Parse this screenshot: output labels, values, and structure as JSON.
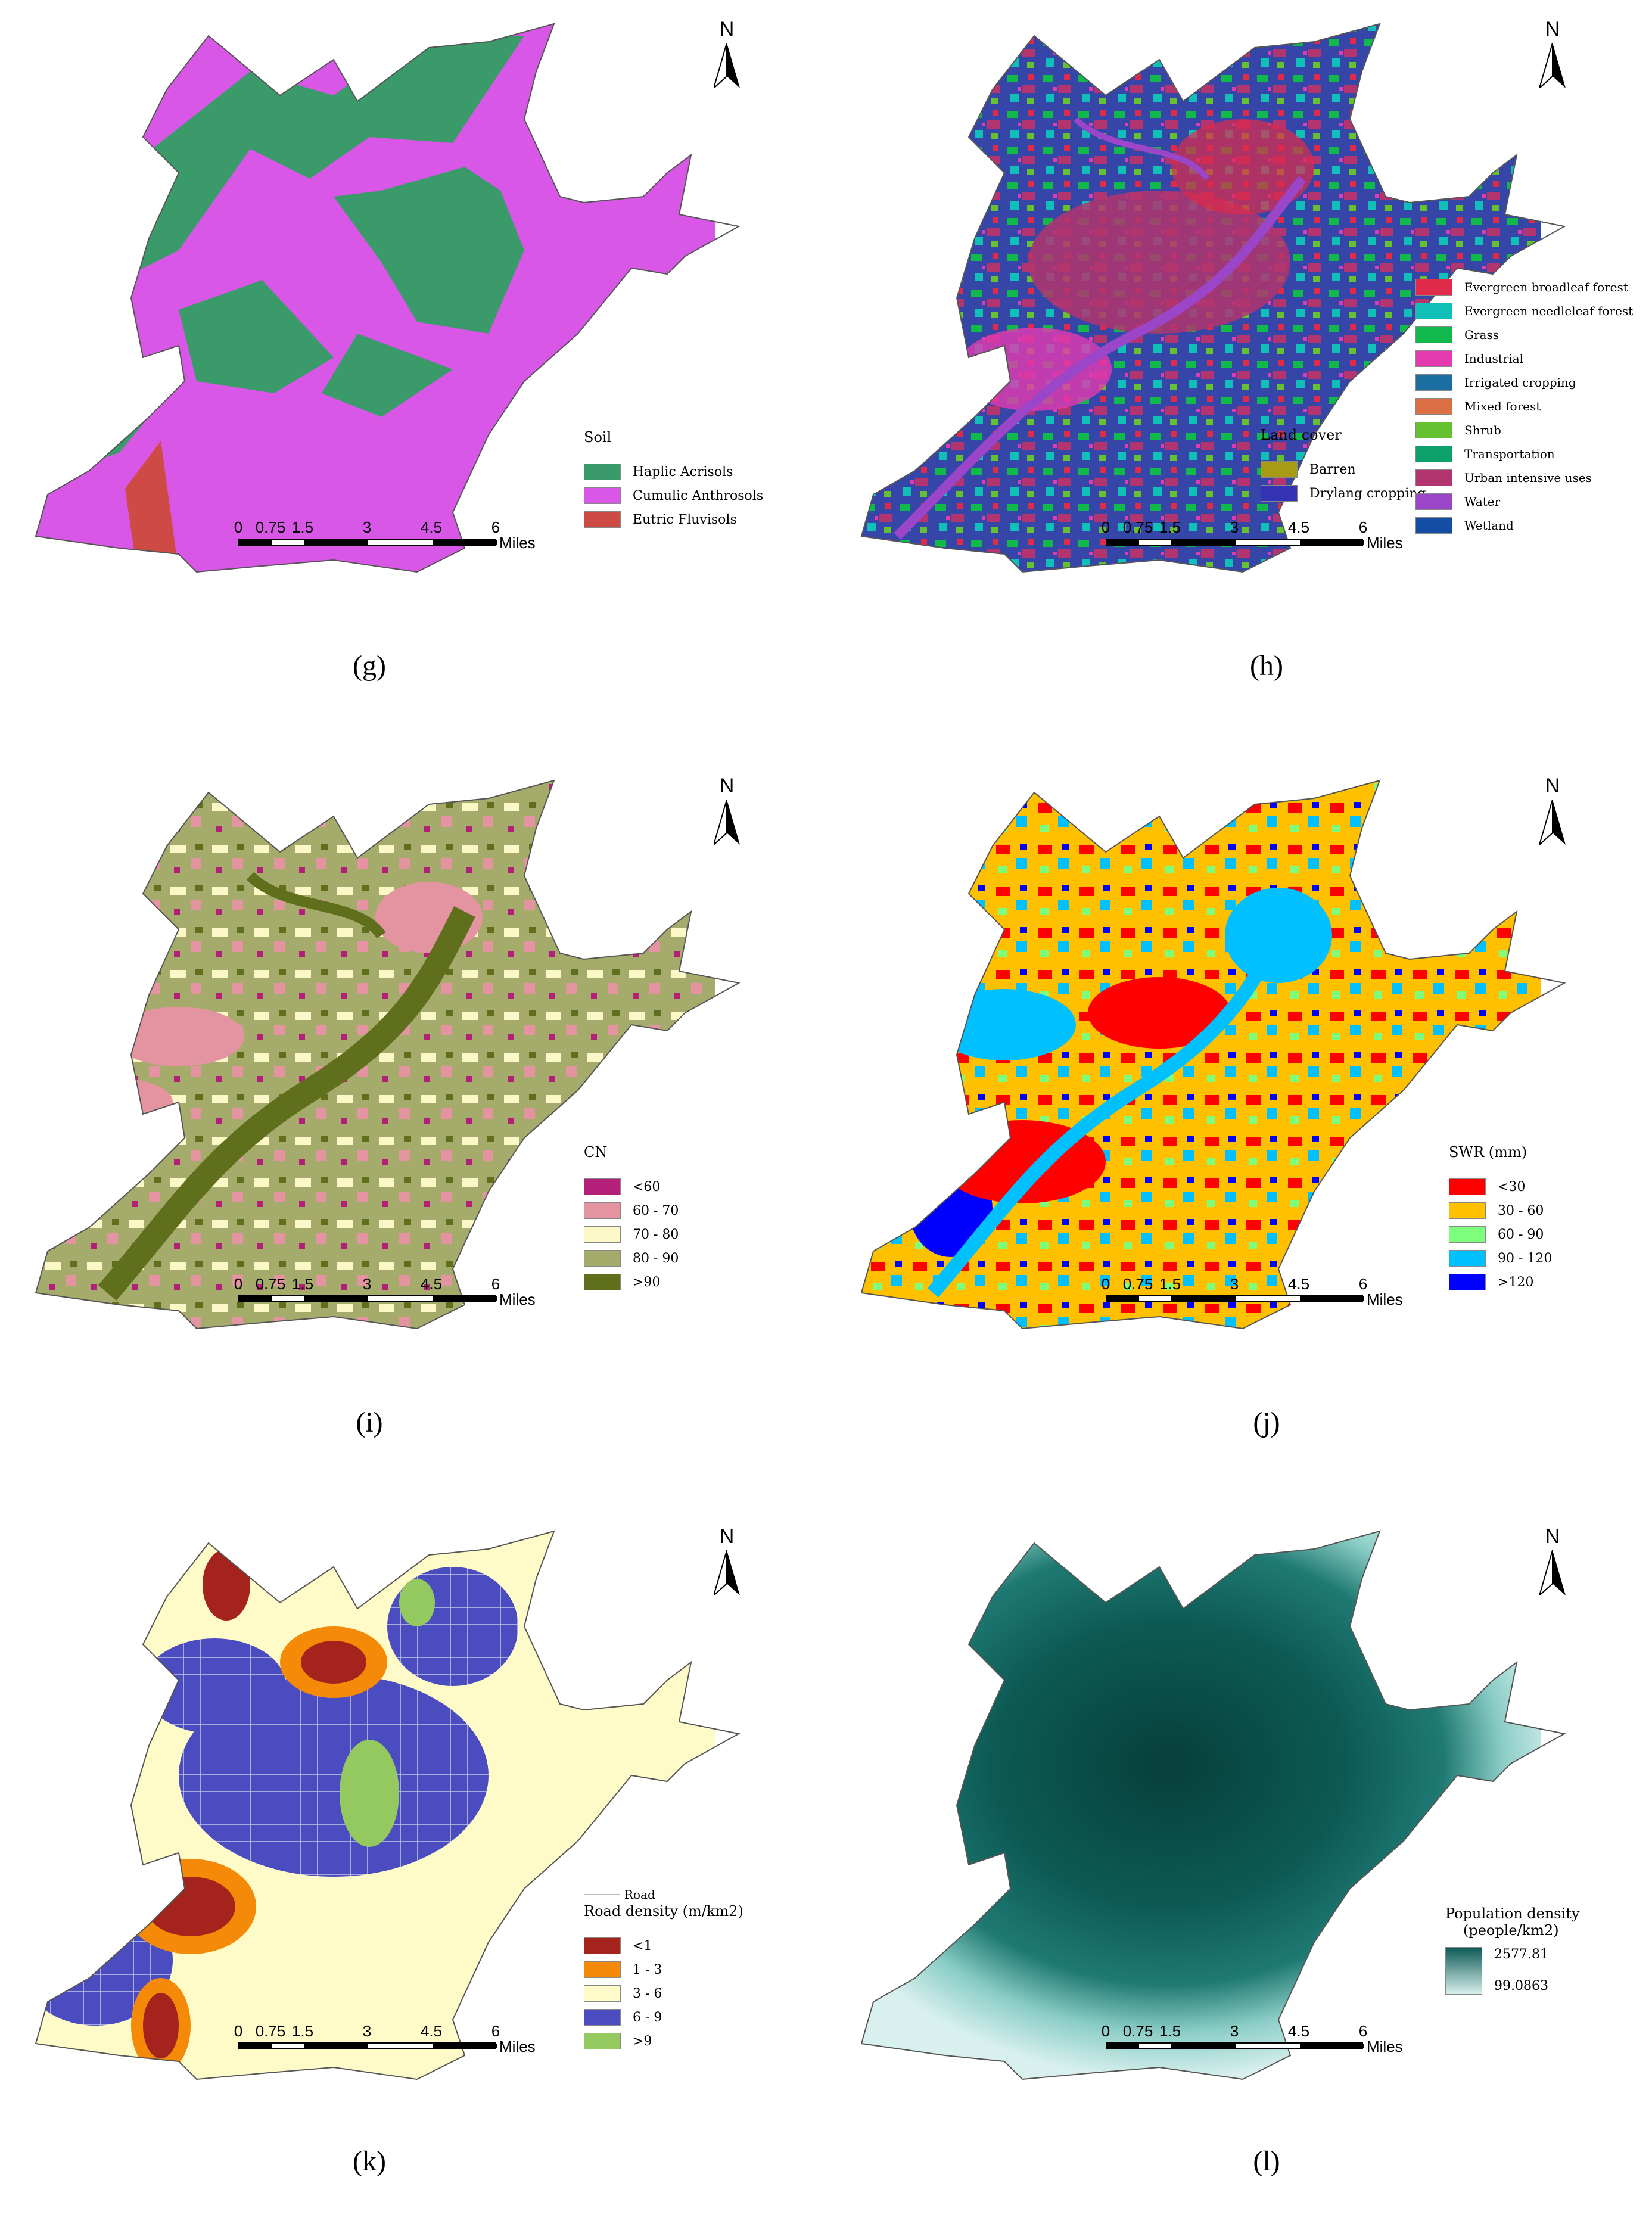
{
  "north_label": "N",
  "scale": {
    "ticks": [
      "0",
      "0.75",
      "1.5",
      "3",
      "4.5",
      "6"
    ],
    "unit": "Miles"
  },
  "panels": [
    {
      "id": "g",
      "caption": "(g)",
      "legend_title": "Soil",
      "legend": [
        {
          "label": "Haplic Acrisols",
          "color": "#3a9a6a"
        },
        {
          "label": "Cumulic Anthrosols",
          "color": "#d957e6"
        },
        {
          "label": "Eutric Fluvisols",
          "color": "#cd4b44"
        }
      ],
      "colors": {
        "base": "#d957e6",
        "accent": "#3a9a6a",
        "extra": "#cd4b44"
      }
    },
    {
      "id": "h",
      "caption": "(h)",
      "legend_title": "Land cover",
      "legend_left": [
        {
          "label": "Barren",
          "color": "#a69b12"
        },
        {
          "label": "Drylang cropping",
          "color": "#3333b4"
        }
      ],
      "legend": [
        {
          "label": "Evergreen broadleaf forest",
          "color": "#df2a4a"
        },
        {
          "label": "Evergreen needleleaf forest",
          "color": "#0fbfb8"
        },
        {
          "label": "Grass",
          "color": "#11b84c"
        },
        {
          "label": "Industrial",
          "color": "#e33ab0"
        },
        {
          "label": "Irrigated cropping",
          "color": "#1a6ea0"
        },
        {
          "label": "Mixed forest",
          "color": "#dd6f45"
        },
        {
          "label": "Shrub",
          "color": "#66c130"
        },
        {
          "label": "Transportation",
          "color": "#0ea06a"
        },
        {
          "label": "Urban intensive uses",
          "color": "#b2356f"
        },
        {
          "label": "Water",
          "color": "#9b46c8"
        },
        {
          "label": "Wetland",
          "color": "#144ea4"
        }
      ],
      "colors": {
        "base": "#3646a8",
        "accent": "#b2356f",
        "extra": "#11b84c"
      }
    },
    {
      "id": "i",
      "caption": "(i)",
      "legend_title": "CN",
      "legend": [
        {
          "label": "<60",
          "color": "#b41f7a"
        },
        {
          "label": "60 - 70",
          "color": "#e394a0"
        },
        {
          "label": "70 - 80",
          "color": "#fbf7c7"
        },
        {
          "label": "80 - 90",
          "color": "#a5ab6a"
        },
        {
          "label": ">90",
          "color": "#5f6f1c"
        }
      ],
      "colors": {
        "base": "#a5ab6a",
        "accent": "#fbf7c7",
        "extra": "#5f6f1c"
      }
    },
    {
      "id": "j",
      "caption": "(j)",
      "legend_title": "SWR (mm)",
      "legend": [
        {
          "label": "<30",
          "color": "#ff0000"
        },
        {
          "label": "30 - 60",
          "color": "#ffc000"
        },
        {
          "label": "60 - 90",
          "color": "#7dff7d"
        },
        {
          "label": "90 - 120",
          "color": "#00c0ff"
        },
        {
          "label": ">120",
          "color": "#0000ff"
        }
      ],
      "colors": {
        "base": "#ffc000",
        "accent": "#ff0000",
        "extra": "#00c0ff"
      }
    },
    {
      "id": "k",
      "caption": "(k)",
      "road_label": "Road",
      "legend_title": "Road density (m/km2)",
      "legend": [
        {
          "label": "<1",
          "color": "#a4231c"
        },
        {
          "label": "1 - 3",
          "color": "#f58a09"
        },
        {
          "label": "3 - 6",
          "color": "#fefbc8"
        },
        {
          "label": "6 - 9",
          "color": "#4a4cbf"
        },
        {
          "label": ">9",
          "color": "#93c95f"
        }
      ],
      "colors": {
        "base": "#fefbc8",
        "accent": "#4a4cbf",
        "extra": "#a4231c"
      }
    },
    {
      "id": "l",
      "caption": "(l)",
      "legend_title_lines": [
        "Population density",
        "(people/km2)"
      ],
      "legend_max": "2577.81",
      "legend_min": "99.0863",
      "colors": {
        "base": "#0d5a55",
        "light": "#d8f0ee"
      }
    }
  ]
}
